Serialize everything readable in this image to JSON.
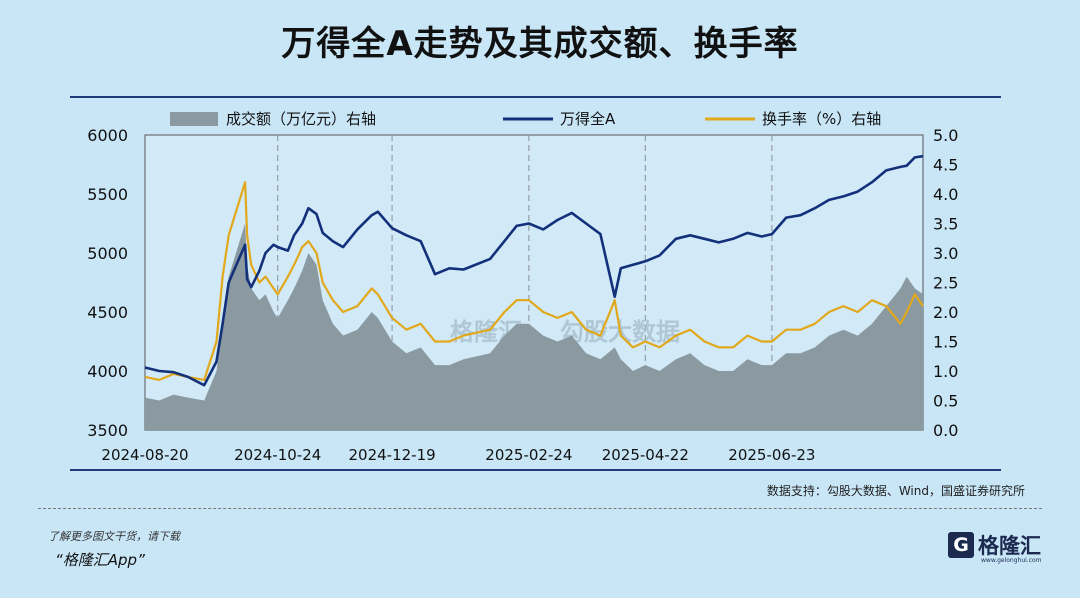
{
  "title": "万得全A走势及其成交额、换手率",
  "source": "数据支持：勾股大数据、Wind，国盛证券研究所",
  "watermark": "格隆汇",
  "watermark_2": "勾股大数据",
  "promo_line1": "了解更多图文干货，请下载",
  "promo_line2": "“格隆汇App”",
  "logo": {
    "mark": "G",
    "name": "格隆汇",
    "url": "www.gelonghui.com"
  },
  "colors": {
    "background": "#c9e6f7",
    "volume": "#8a9aa0",
    "index": "#13307a",
    "turnover": "#e2a81c",
    "rule": "#1f3a7a"
  },
  "chart_data": {
    "type": "line",
    "title": "万得全A走势及其成交额、换手率",
    "x_ticks": [
      "2024-08-20",
      "2024-10-24",
      "2024-12-19",
      "2025-02-24",
      "2025-04-22",
      "2025-06-23"
    ],
    "x_range": [
      "2024-08-20",
      "2025-09-05"
    ],
    "y_left": {
      "range": [
        3500,
        6000
      ],
      "ticks": [
        3500,
        4000,
        4500,
        5000,
        5500,
        6000
      ]
    },
    "y_right": {
      "range": [
        0.0,
        5.0
      ],
      "ticks": [
        "0.0",
        "0.5",
        "1.0",
        "1.5",
        "2.0",
        "2.5",
        "3.0",
        "3.5",
        "4.0",
        "4.5",
        "5.0"
      ]
    },
    "grid": "dashed vertical",
    "legend_position": "top",
    "series": [
      {
        "name": "成交额（万亿元）右轴",
        "type": "area",
        "axis": "right",
        "points": [
          [
            "2024-08-20",
            0.55
          ],
          [
            "2024-08-27",
            0.5
          ],
          [
            "2024-09-03",
            0.6
          ],
          [
            "2024-09-10",
            0.55
          ],
          [
            "2024-09-18",
            0.5
          ],
          [
            "2024-09-24",
            1.0
          ],
          [
            "2024-09-27",
            1.9
          ],
          [
            "2024-09-30",
            2.6
          ],
          [
            "2024-10-08",
            3.5
          ],
          [
            "2024-10-09",
            2.8
          ],
          [
            "2024-10-11",
            2.4
          ],
          [
            "2024-10-15",
            2.2
          ],
          [
            "2024-10-18",
            2.3
          ],
          [
            "2024-10-22",
            2.0
          ],
          [
            "2024-10-24",
            1.9
          ],
          [
            "2024-10-29",
            2.2
          ],
          [
            "2024-11-01",
            2.4
          ],
          [
            "2024-11-05",
            2.7
          ],
          [
            "2024-11-08",
            3.0
          ],
          [
            "2024-11-12",
            2.8
          ],
          [
            "2024-11-15",
            2.2
          ],
          [
            "2024-11-20",
            1.8
          ],
          [
            "2024-11-25",
            1.6
          ],
          [
            "2024-12-02",
            1.7
          ],
          [
            "2024-12-09",
            2.0
          ],
          [
            "2024-12-12",
            1.9
          ],
          [
            "2024-12-19",
            1.5
          ],
          [
            "2024-12-26",
            1.3
          ],
          [
            "2025-01-02",
            1.4
          ],
          [
            "2025-01-09",
            1.1
          ],
          [
            "2025-01-16",
            1.1
          ],
          [
            "2025-01-23",
            1.2
          ],
          [
            "2025-02-05",
            1.3
          ],
          [
            "2025-02-12",
            1.6
          ],
          [
            "2025-02-18",
            1.8
          ],
          [
            "2025-02-24",
            1.8
          ],
          [
            "2025-03-03",
            1.6
          ],
          [
            "2025-03-10",
            1.5
          ],
          [
            "2025-03-17",
            1.6
          ],
          [
            "2025-03-24",
            1.3
          ],
          [
            "2025-03-31",
            1.2
          ],
          [
            "2025-04-07",
            1.4
          ],
          [
            "2025-04-10",
            1.2
          ],
          [
            "2025-04-16",
            1.0
          ],
          [
            "2025-04-22",
            1.1
          ],
          [
            "2025-04-29",
            1.0
          ],
          [
            "2025-05-07",
            1.2
          ],
          [
            "2025-05-14",
            1.3
          ],
          [
            "2025-05-21",
            1.1
          ],
          [
            "2025-05-28",
            1.0
          ],
          [
            "2025-06-04",
            1.0
          ],
          [
            "2025-06-11",
            1.2
          ],
          [
            "2025-06-18",
            1.1
          ],
          [
            "2025-06-23",
            1.1
          ],
          [
            "2025-06-30",
            1.3
          ],
          [
            "2025-07-07",
            1.3
          ],
          [
            "2025-07-14",
            1.4
          ],
          [
            "2025-07-21",
            1.6
          ],
          [
            "2025-07-28",
            1.7
          ],
          [
            "2025-08-04",
            1.6
          ],
          [
            "2025-08-11",
            1.8
          ],
          [
            "2025-08-18",
            2.1
          ],
          [
            "2025-08-25",
            2.4
          ],
          [
            "2025-08-28",
            2.6
          ],
          [
            "2025-09-01",
            2.4
          ],
          [
            "2025-09-05",
            2.3
          ]
        ]
      },
      {
        "name": "万得全A",
        "type": "line",
        "axis": "left",
        "points": [
          [
            "2024-08-20",
            4030
          ],
          [
            "2024-08-27",
            4000
          ],
          [
            "2024-09-03",
            3990
          ],
          [
            "2024-09-10",
            3950
          ],
          [
            "2024-09-18",
            3880
          ],
          [
            "2024-09-24",
            4080
          ],
          [
            "2024-09-27",
            4400
          ],
          [
            "2024-09-30",
            4750
          ],
          [
            "2024-10-08",
            5070
          ],
          [
            "2024-10-09",
            4780
          ],
          [
            "2024-10-11",
            4710
          ],
          [
            "2024-10-15",
            4850
          ],
          [
            "2024-10-18",
            5000
          ],
          [
            "2024-10-22",
            5070
          ],
          [
            "2024-10-24",
            5050
          ],
          [
            "2024-10-29",
            5020
          ],
          [
            "2024-11-01",
            5150
          ],
          [
            "2024-11-05",
            5250
          ],
          [
            "2024-11-08",
            5380
          ],
          [
            "2024-11-12",
            5330
          ],
          [
            "2024-11-15",
            5170
          ],
          [
            "2024-11-20",
            5100
          ],
          [
            "2024-11-25",
            5050
          ],
          [
            "2024-12-02",
            5200
          ],
          [
            "2024-12-09",
            5320
          ],
          [
            "2024-12-12",
            5350
          ],
          [
            "2024-12-19",
            5210
          ],
          [
            "2024-12-26",
            5150
          ],
          [
            "2025-01-02",
            5100
          ],
          [
            "2025-01-09",
            4820
          ],
          [
            "2025-01-16",
            4870
          ],
          [
            "2025-01-23",
            4860
          ],
          [
            "2025-02-05",
            4950
          ],
          [
            "2025-02-12",
            5100
          ],
          [
            "2025-02-18",
            5230
          ],
          [
            "2025-02-24",
            5250
          ],
          [
            "2025-03-03",
            5200
          ],
          [
            "2025-03-10",
            5280
          ],
          [
            "2025-03-17",
            5340
          ],
          [
            "2025-03-24",
            5250
          ],
          [
            "2025-03-31",
            5160
          ],
          [
            "2025-04-07",
            4630
          ],
          [
            "2025-04-10",
            4870
          ],
          [
            "2025-04-16",
            4900
          ],
          [
            "2025-04-22",
            4930
          ],
          [
            "2025-04-29",
            4980
          ],
          [
            "2025-05-07",
            5120
          ],
          [
            "2025-05-14",
            5150
          ],
          [
            "2025-05-21",
            5120
          ],
          [
            "2025-05-28",
            5090
          ],
          [
            "2025-06-04",
            5120
          ],
          [
            "2025-06-11",
            5170
          ],
          [
            "2025-06-18",
            5140
          ],
          [
            "2025-06-23",
            5160
          ],
          [
            "2025-06-30",
            5300
          ],
          [
            "2025-07-07",
            5320
          ],
          [
            "2025-07-14",
            5380
          ],
          [
            "2025-07-21",
            5450
          ],
          [
            "2025-07-28",
            5480
          ],
          [
            "2025-08-04",
            5520
          ],
          [
            "2025-08-11",
            5600
          ],
          [
            "2025-08-18",
            5700
          ],
          [
            "2025-08-25",
            5730
          ],
          [
            "2025-08-28",
            5740
          ],
          [
            "2025-09-01",
            5810
          ],
          [
            "2025-09-05",
            5820
          ]
        ]
      },
      {
        "name": "换手率（%）右轴",
        "type": "line",
        "axis": "right",
        "points": [
          [
            "2024-08-20",
            0.9
          ],
          [
            "2024-08-27",
            0.85
          ],
          [
            "2024-09-03",
            0.95
          ],
          [
            "2024-09-10",
            0.9
          ],
          [
            "2024-09-18",
            0.85
          ],
          [
            "2024-09-24",
            1.5
          ],
          [
            "2024-09-27",
            2.6
          ],
          [
            "2024-09-30",
            3.3
          ],
          [
            "2024-10-08",
            4.2
          ],
          [
            "2024-10-09",
            3.3
          ],
          [
            "2024-10-11",
            2.8
          ],
          [
            "2024-10-15",
            2.5
          ],
          [
            "2024-10-18",
            2.6
          ],
          [
            "2024-10-22",
            2.4
          ],
          [
            "2024-10-24",
            2.3
          ],
          [
            "2024-10-29",
            2.6
          ],
          [
            "2024-11-01",
            2.8
          ],
          [
            "2024-11-05",
            3.1
          ],
          [
            "2024-11-08",
            3.2
          ],
          [
            "2024-11-12",
            3.0
          ],
          [
            "2024-11-15",
            2.5
          ],
          [
            "2024-11-20",
            2.2
          ],
          [
            "2024-11-25",
            2.0
          ],
          [
            "2024-12-02",
            2.1
          ],
          [
            "2024-12-09",
            2.4
          ],
          [
            "2024-12-12",
            2.3
          ],
          [
            "2024-12-19",
            1.9
          ],
          [
            "2024-12-26",
            1.7
          ],
          [
            "2025-01-02",
            1.8
          ],
          [
            "2025-01-09",
            1.5
          ],
          [
            "2025-01-16",
            1.5
          ],
          [
            "2025-01-23",
            1.6
          ],
          [
            "2025-02-05",
            1.7
          ],
          [
            "2025-02-12",
            2.0
          ],
          [
            "2025-02-18",
            2.2
          ],
          [
            "2025-02-24",
            2.2
          ],
          [
            "2025-03-03",
            2.0
          ],
          [
            "2025-03-10",
            1.9
          ],
          [
            "2025-03-17",
            2.0
          ],
          [
            "2025-03-24",
            1.7
          ],
          [
            "2025-03-31",
            1.6
          ],
          [
            "2025-04-07",
            2.2
          ],
          [
            "2025-04-10",
            1.6
          ],
          [
            "2025-04-16",
            1.4
          ],
          [
            "2025-04-22",
            1.5
          ],
          [
            "2025-04-29",
            1.4
          ],
          [
            "2025-05-07",
            1.6
          ],
          [
            "2025-05-14",
            1.7
          ],
          [
            "2025-05-21",
            1.5
          ],
          [
            "2025-05-28",
            1.4
          ],
          [
            "2025-06-04",
            1.4
          ],
          [
            "2025-06-11",
            1.6
          ],
          [
            "2025-06-18",
            1.5
          ],
          [
            "2025-06-23",
            1.5
          ],
          [
            "2025-06-30",
            1.7
          ],
          [
            "2025-07-07",
            1.7
          ],
          [
            "2025-07-14",
            1.8
          ],
          [
            "2025-07-21",
            2.0
          ],
          [
            "2025-07-28",
            2.1
          ],
          [
            "2025-08-04",
            2.0
          ],
          [
            "2025-08-11",
            2.2
          ],
          [
            "2025-08-18",
            2.1
          ],
          [
            "2025-08-25",
            1.8
          ],
          [
            "2025-08-28",
            2.0
          ],
          [
            "2025-09-01",
            2.3
          ],
          [
            "2025-09-05",
            2.1
          ]
        ]
      }
    ]
  }
}
